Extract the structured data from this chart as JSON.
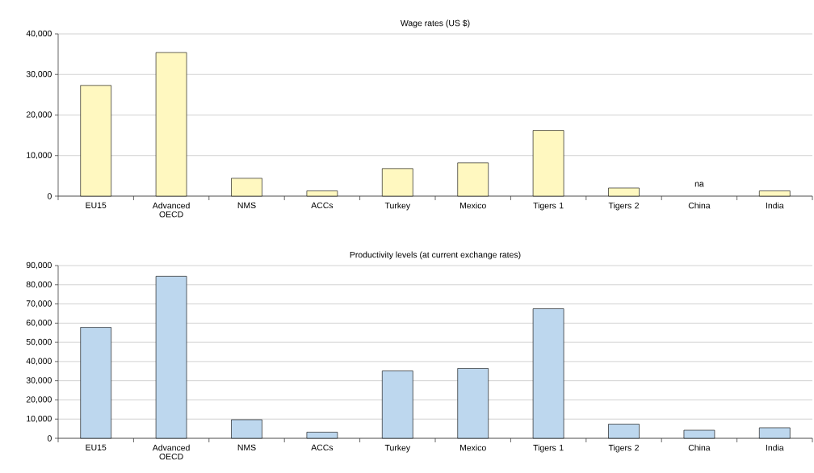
{
  "chart_data": [
    {
      "type": "bar",
      "title": "Wage rates (US $)",
      "categories": [
        "EU15",
        "Advanced OECD",
        "NMS",
        "ACCs",
        "Turkey",
        "Mexico",
        "Tigers 1",
        "Tigers 2",
        "China",
        "India"
      ],
      "values": [
        27300,
        35400,
        4400,
        1300,
        6800,
        8200,
        16200,
        2000,
        null,
        1300
      ],
      "color": "#fff8c0",
      "ylim": [
        0,
        40000
      ],
      "yticks": [
        {
          "value": 0,
          "label": "0"
        },
        {
          "value": 10000,
          "label": "10,000"
        },
        {
          "value": 20000,
          "label": "20,000"
        },
        {
          "value": 30000,
          "label": "30,000"
        },
        {
          "value": 40000,
          "label": "40,000"
        }
      ],
      "value_labels": [
        null,
        null,
        null,
        null,
        null,
        null,
        null,
        null,
        "na",
        null
      ],
      "grid": "y"
    },
    {
      "type": "bar",
      "title": "Productivity levels (at current exchange rates)",
      "categories": [
        "EU15",
        "Advanced OECD",
        "NMS",
        "ACCs",
        "Turkey",
        "Mexico",
        "Tigers 1",
        "Tigers 2",
        "China",
        "India"
      ],
      "values": [
        57800,
        84400,
        9700,
        3200,
        35100,
        36400,
        67500,
        7400,
        4200,
        5500
      ],
      "color": "#bdd7ee",
      "ylim": [
        0,
        90000
      ],
      "yticks": [
        {
          "value": 0,
          "label": "0"
        },
        {
          "value": 10000,
          "label": "10,000"
        },
        {
          "value": 20000,
          "label": "20,000"
        },
        {
          "value": 30000,
          "label": "30,000"
        },
        {
          "value": 40000,
          "label": "40,000"
        },
        {
          "value": 50000,
          "label": "50,000"
        },
        {
          "value": 60000,
          "label": "60,000"
        },
        {
          "value": 70000,
          "label": "70,000"
        },
        {
          "value": 80000,
          "label": "80,000"
        },
        {
          "value": 90000,
          "label": "90,000"
        }
      ],
      "grid": "y"
    }
  ]
}
